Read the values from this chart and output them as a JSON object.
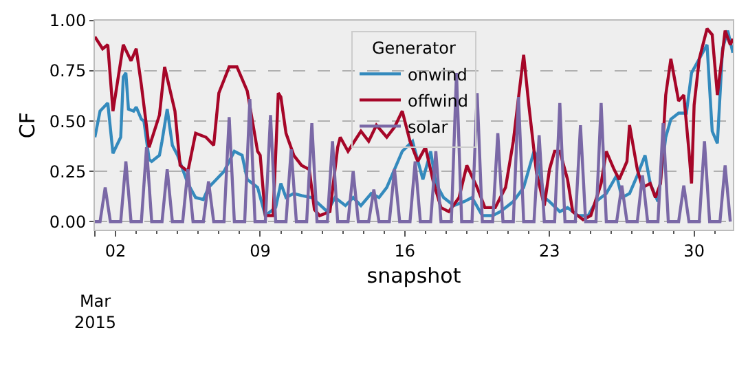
{
  "chart_data": {
    "type": "line",
    "xlabel": "snapshot",
    "ylabel": "CF",
    "legend_title": "Generator",
    "legend": "top",
    "grid": "y",
    "line_style": "solid",
    "marker": "none",
    "xlim": [
      "2015-03-01T00:00",
      "2015-03-31T21:00"
    ],
    "annotations": [
      "Mar\n2015"
    ],
    "xticks": [
      {
        "value": "2015-03-01",
        "label": null
      },
      {
        "value": "2015-03-02",
        "label": "02"
      },
      {
        "value": "2015-03-09",
        "label": "09"
      },
      {
        "value": "2015-03-16",
        "label": "16"
      },
      {
        "value": "2015-03-23",
        "label": "23"
      },
      {
        "value": "2015-03-30",
        "label": "30"
      }
    ],
    "ylim": [
      -0.04,
      1.0
    ],
    "yticks": [
      {
        "value": 0,
        "label": "0.00"
      },
      {
        "value": 0.25,
        "label": "0.25"
      },
      {
        "value": 0.5,
        "label": "0.50"
      },
      {
        "value": 0.75,
        "label": "0.75"
      },
      {
        "value": 1.0,
        "label": "1.00"
      }
    ],
    "series": [
      {
        "name": "onwind",
        "color": "#348abd",
        "x": [
          "2015-03-01T00:00",
          "2015-03-01T06:00",
          "2015-03-01T15:00",
          "2015-03-01T21:00",
          "2015-03-02T06:00",
          "2015-03-02T09:00",
          "2015-03-02T12:00",
          "2015-03-02T15:00",
          "2015-03-02T21:00",
          "2015-03-03T00:00",
          "2015-03-03T06:00",
          "2015-03-03T09:00",
          "2015-03-03T15:00",
          "2015-03-03T18:00",
          "2015-03-04T03:00",
          "2015-03-04T06:00",
          "2015-03-04T12:00",
          "2015-03-04T18:00",
          "2015-03-05T00:00",
          "2015-03-05T12:00",
          "2015-03-05T21:00",
          "2015-03-06T06:00",
          "2015-03-06T12:00",
          "2015-03-06T21:00",
          "2015-03-07T06:00",
          "2015-03-07T18:00",
          "2015-03-08T03:00",
          "2015-03-08T09:00",
          "2015-03-08T21:00",
          "2015-03-09T06:00",
          "2015-03-09T18:00",
          "2015-03-10T00:00",
          "2015-03-10T06:00",
          "2015-03-10T15:00",
          "2015-03-11T00:00",
          "2015-03-11T12:00",
          "2015-03-12T06:00",
          "2015-03-12T15:00",
          "2015-03-13T03:00",
          "2015-03-13T12:00",
          "2015-03-13T21:00",
          "2015-03-14T09:00",
          "2015-03-14T18:00",
          "2015-03-15T03:00",
          "2015-03-15T12:00",
          "2015-03-15T21:00",
          "2015-03-16T09:00",
          "2015-03-16T21:00",
          "2015-03-17T06:00",
          "2015-03-17T12:00",
          "2015-03-17T21:00",
          "2015-03-18T09:00",
          "2015-03-18T21:00",
          "2015-03-19T06:00",
          "2015-03-19T18:00",
          "2015-03-20T06:00",
          "2015-03-20T15:00",
          "2015-03-21T06:00",
          "2015-03-21T18:00",
          "2015-03-22T06:00",
          "2015-03-22T09:00",
          "2015-03-22T18:00",
          "2015-03-23T00:00",
          "2015-03-23T12:00",
          "2015-03-23T21:00",
          "2015-03-24T09:00",
          "2015-03-24T21:00",
          "2015-03-25T06:00",
          "2015-03-25T18:00",
          "2015-03-26T06:00",
          "2015-03-26T12:00",
          "2015-03-26T21:00",
          "2015-03-27T06:00",
          "2015-03-27T15:00",
          "2015-03-27T21:00",
          "2015-03-28T06:00",
          "2015-03-28T15:00",
          "2015-03-28T21:00",
          "2015-03-29T06:00",
          "2015-03-29T15:00",
          "2015-03-29T21:00",
          "2015-03-30T06:00",
          "2015-03-30T15:00",
          "2015-03-30T21:00",
          "2015-03-31T03:00",
          "2015-03-31T09:00",
          "2015-03-31T15:00",
          "2015-03-31T21:00"
        ],
        "values": [
          0.42,
          0.55,
          0.59,
          0.34,
          0.42,
          0.72,
          0.74,
          0.56,
          0.55,
          0.57,
          0.51,
          0.5,
          0.31,
          0.3,
          0.33,
          0.4,
          0.56,
          0.38,
          0.33,
          0.19,
          0.12,
          0.11,
          0.17,
          0.21,
          0.25,
          0.35,
          0.33,
          0.21,
          0.17,
          0.03,
          0.07,
          0.19,
          0.12,
          0.14,
          0.13,
          0.12,
          0.05,
          0.12,
          0.08,
          0.12,
          0.08,
          0.14,
          0.12,
          0.17,
          0.26,
          0.35,
          0.4,
          0.21,
          0.35,
          0.19,
          0.12,
          0.08,
          0.1,
          0.12,
          0.03,
          0.03,
          0.05,
          0.1,
          0.17,
          0.35,
          0.33,
          0.12,
          0.1,
          0.05,
          0.07,
          0.03,
          0.03,
          0.1,
          0.14,
          0.23,
          0.12,
          0.14,
          0.23,
          0.33,
          0.19,
          0.1,
          0.42,
          0.51,
          0.54,
          0.54,
          0.74,
          0.81,
          0.88,
          0.45,
          0.39,
          0.86,
          0.95,
          0.84
        ]
      },
      {
        "name": "offwind",
        "color": "#a60628",
        "x": [
          "2015-03-01T00:00",
          "2015-03-01T09:00",
          "2015-03-01T15:00",
          "2015-03-01T21:00",
          "2015-03-02T09:00",
          "2015-03-02T18:00",
          "2015-03-03T00:00",
          "2015-03-03T06:00",
          "2015-03-03T15:00",
          "2015-03-04T03:00",
          "2015-03-04T09:00",
          "2015-03-04T21:00",
          "2015-03-05T03:00",
          "2015-03-05T12:00",
          "2015-03-05T21:00",
          "2015-03-06T09:00",
          "2015-03-06T18:00",
          "2015-03-07T00:00",
          "2015-03-07T12:00",
          "2015-03-07T21:00",
          "2015-03-08T09:00",
          "2015-03-08T21:00",
          "2015-03-09T00:00",
          "2015-03-09T06:00",
          "2015-03-09T15:00",
          "2015-03-09T21:00",
          "2015-03-10T00:00",
          "2015-03-10T06:00",
          "2015-03-10T15:00",
          "2015-03-11T00:00",
          "2015-03-11T09:00",
          "2015-03-11T15:00",
          "2015-03-11T21:00",
          "2015-03-12T09:00",
          "2015-03-12T18:00",
          "2015-03-12T21:00",
          "2015-03-13T06:00",
          "2015-03-13T12:00",
          "2015-03-13T21:00",
          "2015-03-14T06:00",
          "2015-03-14T15:00",
          "2015-03-15T03:00",
          "2015-03-15T12:00",
          "2015-03-15T21:00",
          "2015-03-16T06:00",
          "2015-03-16T15:00",
          "2015-03-17T00:00",
          "2015-03-17T09:00",
          "2015-03-17T18:00",
          "2015-03-18T03:00",
          "2015-03-18T15:00",
          "2015-03-19T00:00",
          "2015-03-19T12:00",
          "2015-03-19T21:00",
          "2015-03-20T09:00",
          "2015-03-20T21:00",
          "2015-03-21T06:00",
          "2015-03-21T18:00",
          "2015-03-22T00:00",
          "2015-03-22T09:00",
          "2015-03-22T18:00",
          "2015-03-23T00:00",
          "2015-03-23T06:00",
          "2015-03-23T12:00",
          "2015-03-23T21:00",
          "2015-03-24T03:00",
          "2015-03-24T15:00",
          "2015-03-25T00:00",
          "2015-03-25T12:00",
          "2015-03-25T18:00",
          "2015-03-26T03:00",
          "2015-03-26T09:00",
          "2015-03-26T18:00",
          "2015-03-26T21:00",
          "2015-03-27T06:00",
          "2015-03-27T12:00",
          "2015-03-27T21:00",
          "2015-03-28T03:00",
          "2015-03-28T09:00",
          "2015-03-28T15:00",
          "2015-03-28T21:00",
          "2015-03-29T06:00",
          "2015-03-29T12:00",
          "2015-03-29T18:00",
          "2015-03-29T21:00",
          "2015-03-30T00:00",
          "2015-03-30T06:00",
          "2015-03-30T15:00",
          "2015-03-30T21:00",
          "2015-03-31T03:00",
          "2015-03-31T12:00",
          "2015-03-31T18:00",
          "2015-03-31T21:00"
        ],
        "values": [
          0.92,
          0.86,
          0.88,
          0.55,
          0.88,
          0.8,
          0.86,
          0.68,
          0.37,
          0.53,
          0.77,
          0.55,
          0.28,
          0.25,
          0.44,
          0.42,
          0.38,
          0.64,
          0.77,
          0.77,
          0.65,
          0.35,
          0.33,
          0.03,
          0.03,
          0.64,
          0.62,
          0.44,
          0.33,
          0.28,
          0.26,
          0.06,
          0.03,
          0.05,
          0.37,
          0.42,
          0.35,
          0.39,
          0.45,
          0.4,
          0.48,
          0.42,
          0.47,
          0.55,
          0.4,
          0.3,
          0.37,
          0.2,
          0.07,
          0.05,
          0.12,
          0.28,
          0.17,
          0.07,
          0.07,
          0.17,
          0.4,
          0.83,
          0.58,
          0.24,
          0.08,
          0.26,
          0.35,
          0.35,
          0.21,
          0.05,
          0.01,
          0.03,
          0.19,
          0.35,
          0.26,
          0.21,
          0.3,
          0.48,
          0.26,
          0.17,
          0.19,
          0.12,
          0.19,
          0.63,
          0.81,
          0.6,
          0.63,
          0.35,
          0.19,
          0.58,
          0.81,
          0.96,
          0.93,
          0.63,
          0.95,
          0.88,
          0.91
        ]
      },
      {
        "name": "solar",
        "color": "#7a68a6",
        "x": [
          "2015-03-01T00:00",
          "2015-03-01T06:00",
          "2015-03-01T12:00",
          "2015-03-01T18:00",
          "2015-03-02T06:00",
          "2015-03-02T12:00",
          "2015-03-02T18:00",
          "2015-03-03T06:00",
          "2015-03-03T12:00",
          "2015-03-03T18:00",
          "2015-03-04T06:00",
          "2015-03-04T12:00",
          "2015-03-04T18:00",
          "2015-03-05T06:00",
          "2015-03-05T12:00",
          "2015-03-05T18:00",
          "2015-03-06T06:00",
          "2015-03-06T12:00",
          "2015-03-06T18:00",
          "2015-03-07T06:00",
          "2015-03-07T12:00",
          "2015-03-07T18:00",
          "2015-03-08T06:00",
          "2015-03-08T12:00",
          "2015-03-08T18:00",
          "2015-03-09T06:00",
          "2015-03-09T12:00",
          "2015-03-09T18:00",
          "2015-03-10T06:00",
          "2015-03-10T12:00",
          "2015-03-10T18:00",
          "2015-03-11T06:00",
          "2015-03-11T12:00",
          "2015-03-11T18:00",
          "2015-03-12T06:00",
          "2015-03-12T12:00",
          "2015-03-12T18:00",
          "2015-03-13T06:00",
          "2015-03-13T12:00",
          "2015-03-13T18:00",
          "2015-03-14T06:00",
          "2015-03-14T12:00",
          "2015-03-14T18:00",
          "2015-03-15T06:00",
          "2015-03-15T12:00",
          "2015-03-15T18:00",
          "2015-03-16T06:00",
          "2015-03-16T12:00",
          "2015-03-16T18:00",
          "2015-03-17T06:00",
          "2015-03-17T12:00",
          "2015-03-17T18:00",
          "2015-03-18T06:00",
          "2015-03-18T12:00",
          "2015-03-18T18:00",
          "2015-03-19T06:00",
          "2015-03-19T12:00",
          "2015-03-19T18:00",
          "2015-03-20T06:00",
          "2015-03-20T12:00",
          "2015-03-20T18:00",
          "2015-03-21T06:00",
          "2015-03-21T12:00",
          "2015-03-21T18:00",
          "2015-03-22T06:00",
          "2015-03-22T12:00",
          "2015-03-22T18:00",
          "2015-03-23T06:00",
          "2015-03-23T12:00",
          "2015-03-23T18:00",
          "2015-03-24T06:00",
          "2015-03-24T12:00",
          "2015-03-24T18:00",
          "2015-03-25T06:00",
          "2015-03-25T12:00",
          "2015-03-25T18:00",
          "2015-03-26T06:00",
          "2015-03-26T12:00",
          "2015-03-26T18:00",
          "2015-03-27T06:00",
          "2015-03-27T12:00",
          "2015-03-27T18:00",
          "2015-03-28T06:00",
          "2015-03-28T12:00",
          "2015-03-28T18:00",
          "2015-03-29T06:00",
          "2015-03-29T12:00",
          "2015-03-29T18:00",
          "2015-03-30T06:00",
          "2015-03-30T12:00",
          "2015-03-30T18:00",
          "2015-03-31T06:00",
          "2015-03-31T12:00",
          "2015-03-31T18:00"
        ],
        "values": [
          0,
          0,
          0.17,
          0,
          0,
          0.3,
          0,
          0,
          0.37,
          0,
          0,
          0.26,
          0,
          0,
          0.26,
          0,
          0,
          0.2,
          0,
          0,
          0.52,
          0,
          0,
          0.61,
          0,
          0,
          0.53,
          0,
          0,
          0.36,
          0,
          0,
          0.49,
          0,
          0,
          0.4,
          0,
          0,
          0.25,
          0,
          0,
          0.16,
          0,
          0,
          0.26,
          0,
          0,
          0.3,
          0,
          0,
          0.35,
          0,
          0,
          0.74,
          0,
          0,
          0.64,
          0,
          0,
          0.44,
          0,
          0,
          0.62,
          0,
          0,
          0.43,
          0,
          0,
          0.59,
          0,
          0,
          0.48,
          0,
          0,
          0.59,
          0,
          0,
          0.18,
          0,
          0,
          0.23,
          0,
          0,
          0.49,
          0,
          0,
          0.18,
          0,
          0,
          0.4,
          0,
          0,
          0.28,
          0
        ]
      }
    ]
  }
}
